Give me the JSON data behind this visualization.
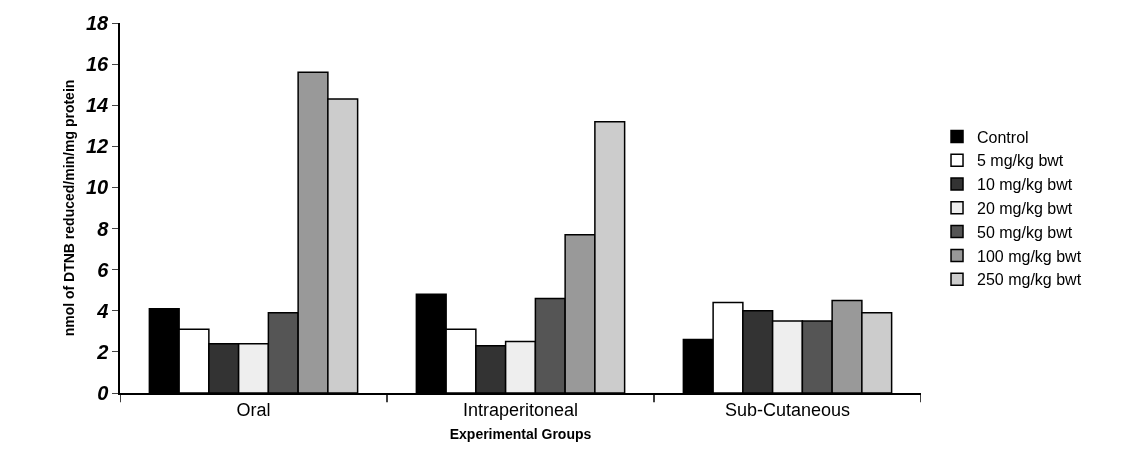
{
  "chart_data": {
    "type": "bar",
    "xlabel": "Experimental Groups",
    "ylabel": "nmol of DTNB reduced/min/mg protein",
    "categories": [
      "Oral",
      "Intraperitoneal",
      "Sub-Cutaneous"
    ],
    "series": [
      {
        "name": "Control",
        "color": "#000000",
        "values": [
          4.1,
          4.8,
          2.6
        ]
      },
      {
        "name": "5 mg/kg bwt",
        "color": "#ffffff",
        "values": [
          3.1,
          3.1,
          4.4
        ]
      },
      {
        "name": "10 mg/kg bwt",
        "color": "#333333",
        "values": [
          2.4,
          2.3,
          4.0
        ]
      },
      {
        "name": "20 mg/kg bwt",
        "color": "#eeeeee",
        "values": [
          2.4,
          2.5,
          3.5
        ]
      },
      {
        "name": "50 mg/kg bwt",
        "color": "#555555",
        "values": [
          3.9,
          4.6,
          3.5
        ]
      },
      {
        "name": "100 mg/kg bwt",
        "color": "#999999",
        "values": [
          15.6,
          7.7,
          4.5
        ]
      },
      {
        "name": "250 mg/kg bwt",
        "color": "#cccccc",
        "values": [
          14.3,
          13.2,
          3.9
        ]
      }
    ],
    "ylim": [
      0,
      18
    ],
    "yticks": [
      0,
      2,
      4,
      6,
      8,
      10,
      12,
      14,
      16,
      18
    ],
    "legend": "right"
  }
}
